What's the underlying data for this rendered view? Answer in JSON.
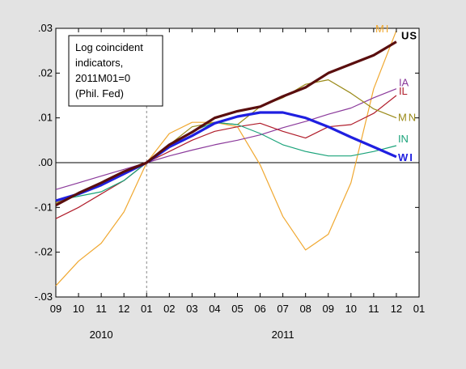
{
  "chart_data": {
    "type": "line",
    "title": "",
    "xlabel": "",
    "ylabel": "",
    "x": [
      "09",
      "10",
      "11",
      "12",
      "01",
      "02",
      "03",
      "04",
      "05",
      "06",
      "07",
      "08",
      "09",
      "10",
      "11",
      "12"
    ],
    "x_tick_labels": [
      "09",
      "10",
      "11",
      "12",
      "01",
      "02",
      "03",
      "04",
      "05",
      "06",
      "07",
      "08",
      "09",
      "10",
      "11",
      "12",
      "01"
    ],
    "year_labels": [
      "2010",
      "2011"
    ],
    "ylim": [
      -0.03,
      0.03
    ],
    "y_tick_labels": [
      ".03",
      ".02",
      ".01",
      ".00",
      "-.01",
      "-.02",
      "-.03"
    ],
    "y_ticks": [
      0.03,
      0.02,
      0.01,
      0.0,
      -0.01,
      -0.02,
      -0.03
    ],
    "annotation": [
      "Log coincident",
      "indicators,",
      "2011M01=0",
      "(Phil. Fed)"
    ],
    "series": [
      {
        "name": "MI",
        "color": "#f0a830",
        "width": 1.2,
        "values": [
          -0.0275,
          -0.022,
          -0.018,
          -0.011,
          0.0,
          0.0065,
          0.009,
          0.009,
          0.008,
          -0.0005,
          -0.012,
          -0.0195,
          -0.016,
          -0.0045,
          0.0165,
          0.0295
        ]
      },
      {
        "name": "IA",
        "color": "#8b3a9b",
        "width": 1.2,
        "values": [
          -0.006,
          -0.0045,
          -0.003,
          -0.0015,
          0.0,
          0.0015,
          0.0028,
          0.004,
          0.005,
          0.0062,
          0.0078,
          0.0092,
          0.0108,
          0.0122,
          0.0145,
          0.0165
        ]
      },
      {
        "name": "IL",
        "color": "#b01c2a",
        "width": 1.2,
        "values": [
          -0.0125,
          -0.01,
          -0.007,
          -0.004,
          0.0,
          0.0025,
          0.005,
          0.007,
          0.008,
          0.0088,
          0.007,
          0.0055,
          0.008,
          0.0085,
          0.011,
          0.015
        ]
      },
      {
        "name": "MN",
        "color": "#9a8a18",
        "width": 1.2,
        "values": [
          -0.009,
          -0.007,
          -0.005,
          -0.0025,
          0.0,
          0.004,
          0.008,
          0.009,
          0.0085,
          0.0125,
          0.0145,
          0.0175,
          0.0185,
          0.0155,
          0.012,
          0.01
        ]
      },
      {
        "name": "IN",
        "color": "#1aa37a",
        "width": 1.2,
        "values": [
          -0.0085,
          -0.0075,
          -0.0065,
          -0.004,
          0.0,
          0.004,
          0.007,
          0.009,
          0.0085,
          0.0065,
          0.004,
          0.0025,
          0.0015,
          0.0015,
          0.0025,
          0.0038
        ]
      },
      {
        "name": "WI",
        "color": "#1f1fe0",
        "width": 3.2,
        "values": [
          -0.0085,
          -0.007,
          -0.005,
          -0.0025,
          0.0,
          0.0035,
          0.006,
          0.0088,
          0.0103,
          0.0112,
          0.0112,
          0.01,
          0.008,
          0.0057,
          0.0035,
          0.0013
        ]
      },
      {
        "name": "US",
        "color": "#5a0e0e",
        "width": 3.2,
        "values": [
          -0.0095,
          -0.0068,
          -0.0045,
          -0.002,
          0.0,
          0.004,
          0.0068,
          0.01,
          0.0115,
          0.0125,
          0.0148,
          0.0168,
          0.02,
          0.022,
          0.024,
          0.027
        ]
      }
    ],
    "series_labels": [
      {
        "name": "MI",
        "text": "MI"
      },
      {
        "name": "US",
        "text": "US"
      },
      {
        "name": "IA",
        "text": "IA"
      },
      {
        "name": "IL",
        "text": "IL"
      },
      {
        "name": "MN",
        "text": "MN"
      },
      {
        "name": "IN",
        "text": "IN"
      },
      {
        "name": "WI",
        "text": "WI"
      }
    ],
    "grid": false,
    "reference_lines": [
      "horizontal zero line",
      "vertical dashed line at 2011M01"
    ]
  }
}
